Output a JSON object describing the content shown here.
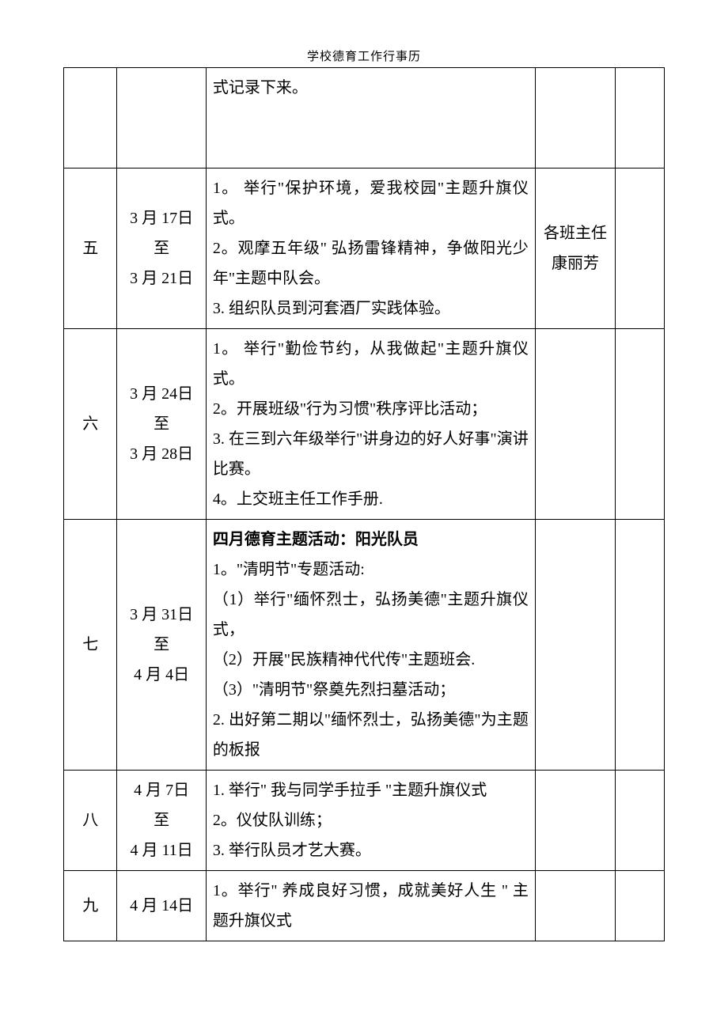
{
  "header": "学校德育工作行事历",
  "table": {
    "columns": {
      "week_width": 60,
      "date_width": 100,
      "content_width": 370,
      "person_width": 90,
      "extra_width": 55
    },
    "rows": [
      {
        "week": "",
        "date": "",
        "content_lines": [
          "式记录下来。"
        ],
        "content_bold_prefix": "",
        "person": ""
      },
      {
        "week": "五",
        "date": "3 月 17日\n至\n3 月 21日",
        "content_lines": [
          "1。 举行\"保护环境，爱我校园\"主题升旗仪式。",
          "2。观摩五年级\" 弘扬雷锋精神，争做阳光少年\"主题中队会。",
          "3. 组织队员到河套酒厂实践体验。"
        ],
        "content_bold_prefix": "",
        "person": "各班主任\n康丽芳"
      },
      {
        "week": "六",
        "date": "3 月 24日\n至\n3 月 28日",
        "content_lines": [
          "1。 举行\"勤俭节约，从我做起\"主题升旗仪式。",
          "2。开展班级\"行为习惯\"秩序评比活动；",
          "3. 在三到六年级举行\"讲身边的好人好事\"演讲比赛。",
          "4。上交班主任工作手册."
        ],
        "content_bold_prefix": "",
        "person": ""
      },
      {
        "week": "七",
        "date": "3 月 31日\n至\n4 月 4日",
        "content_lines": [
          "1。\"清明节\"专题活动:",
          "（1）举行\"缅怀烈士，弘扬美德\"主题升旗仪式，",
          "（2）开展\"民族精神代代传\"主题班会.",
          "（3）\"清明节\"祭奠先烈扫墓活动；",
          "2. 出好第二期以\"缅怀烈士，弘扬美德\"为主题的板报"
        ],
        "content_bold_prefix": "四月德育主题活动：阳光队员",
        "person": ""
      },
      {
        "week": "八",
        "date": "4 月 7日\n至\n4 月 11日",
        "content_lines": [
          "1. 举行\" 我与同学手拉手 \"主题升旗仪式",
          "2。仪仗队训练；",
          "3. 举行队员才艺大赛。"
        ],
        "content_bold_prefix": "",
        "person": ""
      },
      {
        "week": "九",
        "date": "4 月 14日",
        "content_lines": [
          "1。举行\" 养成良好习惯，成就美好人生 \" 主题升旗仪式"
        ],
        "content_bold_prefix": "",
        "person": ""
      }
    ]
  },
  "styling": {
    "font_family": "SimSun",
    "font_size": 20,
    "line_height": 1.9,
    "border_color": "#000000",
    "background_color": "#ffffff",
    "header_font_size": 15
  }
}
